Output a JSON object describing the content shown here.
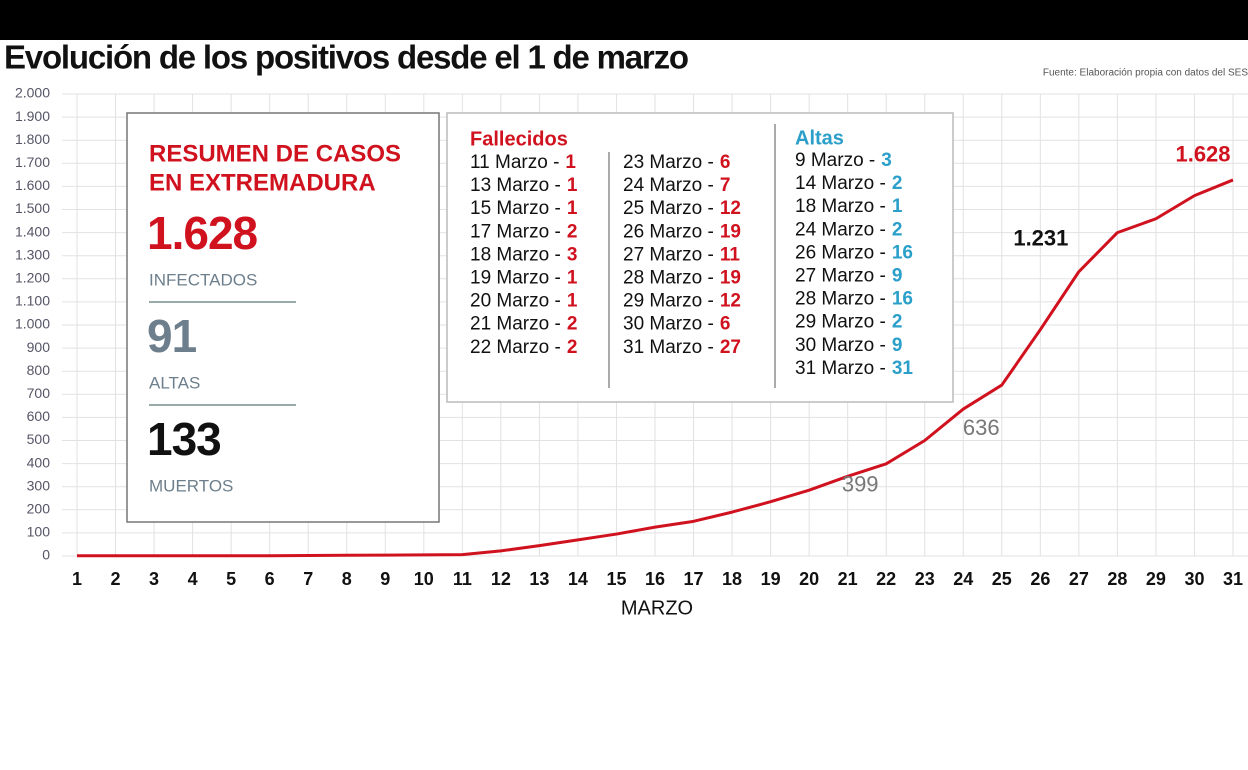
{
  "chart_data": {
    "type": "line",
    "title": "Evolución de los positivos desde el 1 de marzo",
    "source": "Fuente: Elaboración propia con datos del SES",
    "xlabel": "MARZO",
    "x": [
      1,
      2,
      3,
      4,
      5,
      6,
      7,
      8,
      9,
      10,
      11,
      12,
      13,
      14,
      15,
      16,
      17,
      18,
      19,
      20,
      21,
      22,
      23,
      24,
      25,
      26,
      27,
      28,
      29,
      30,
      31
    ],
    "series": [
      {
        "name": "Positivos",
        "color": "#d0121f",
        "values": [
          1,
          1,
          1,
          1,
          1,
          1,
          2,
          3,
          4,
          5,
          6,
          22,
          45,
          70,
          95,
          125,
          150,
          190,
          235,
          285,
          345,
          399,
          500,
          636,
          740,
          980,
          1231,
          1400,
          1460,
          1560,
          1628
        ],
        "value_labels": [
          null,
          null,
          null,
          null,
          null,
          null,
          null,
          null,
          null,
          null,
          null,
          null,
          null,
          null,
          null,
          null,
          null,
          null,
          null,
          null,
          null,
          "399",
          null,
          "636",
          null,
          null,
          "1.231",
          null,
          null,
          null,
          "1.628"
        ],
        "value_label_colors": [
          null,
          null,
          null,
          null,
          null,
          null,
          null,
          null,
          null,
          null,
          null,
          null,
          null,
          null,
          null,
          null,
          null,
          null,
          null,
          null,
          null,
          "#777",
          null,
          "#777",
          null,
          null,
          "#111",
          null,
          null,
          null,
          "#d0121f"
        ]
      }
    ],
    "xlim": [
      1,
      31
    ],
    "xticks": [
      1,
      2,
      3,
      4,
      5,
      6,
      7,
      8,
      9,
      10,
      11,
      12,
      13,
      14,
      15,
      16,
      17,
      18,
      19,
      20,
      21,
      22,
      23,
      24,
      25,
      26,
      27,
      28,
      29,
      30,
      31
    ],
    "ylim": [
      0,
      2000
    ],
    "yticks": [
      0,
      100,
      200,
      300,
      400,
      500,
      600,
      700,
      800,
      900,
      {
        "value": 1000,
        "label": "1.000"
      },
      {
        "value": 1100,
        "label": "1.100"
      },
      {
        "value": 1200,
        "label": "1.200"
      },
      {
        "value": 1300,
        "label": "1.300"
      },
      {
        "value": 1400,
        "label": "1.400"
      },
      {
        "value": 1500,
        "label": "1.500"
      },
      {
        "value": 1600,
        "label": "1.600"
      },
      {
        "value": 1700,
        "label": "1.700"
      },
      {
        "value": 1800,
        "label": "1.800"
      },
      {
        "value": 1900,
        "label": "1.900"
      },
      {
        "value": 2000,
        "label": "2.000"
      }
    ],
    "grid": true
  },
  "summary": {
    "title_lines": [
      "RESUMEN DE CASOS",
      "EN EXTREMADURA"
    ],
    "items": [
      {
        "value": "1.628",
        "label": "INFECTADOS",
        "color": "#d0121f"
      },
      {
        "value": "91",
        "label": "ALTAS",
        "color": "#6d7f8c"
      },
      {
        "value": "133",
        "label": "MUERTOS",
        "color": "#111"
      }
    ]
  },
  "deaths": {
    "title": "Fallecidos",
    "columns": [
      [
        {
          "label": "11 Marzo -",
          "count": 1
        },
        {
          "label": "13 Marzo -",
          "count": 1
        },
        {
          "label": "15 Marzo -",
          "count": 1
        },
        {
          "label": "17 Marzo -",
          "count": 2
        },
        {
          "label": "18 Marzo -",
          "count": 3
        },
        {
          "label": "19 Marzo -",
          "count": 1
        },
        {
          "label": "20 Marzo -",
          "count": 1
        },
        {
          "label": "21 Marzo -",
          "count": 2
        },
        {
          "label": "22 Marzo -",
          "count": 2
        }
      ],
      [
        {
          "label": "23 Marzo -",
          "count": 6
        },
        {
          "label": "24 Marzo -",
          "count": 7
        },
        {
          "label": "25 Marzo -",
          "count": 12
        },
        {
          "label": "26 Marzo -",
          "count": 19
        },
        {
          "label": "27 Marzo -",
          "count": 11
        },
        {
          "label": "28 Marzo -",
          "count": 19
        },
        {
          "label": "29 Marzo -",
          "count": 12
        },
        {
          "label": "30 Marzo -",
          "count": 6
        },
        {
          "label": "31 Marzo -",
          "count": 27
        }
      ]
    ]
  },
  "recoveries": {
    "title": "Altas",
    "entries": [
      {
        "label": "9 Marzo -",
        "count": 3
      },
      {
        "label": "14 Marzo -",
        "count": 2
      },
      {
        "label": "18 Marzo -",
        "count": 1
      },
      {
        "label": "24 Marzo -",
        "count": 2
      },
      {
        "label": "26 Marzo -",
        "count": 16
      },
      {
        "label": "27 Marzo -",
        "count": 9
      },
      {
        "label": "28 Marzo -",
        "count": 16
      },
      {
        "label": "29 Marzo -",
        "count": 2
      },
      {
        "label": "30 Marzo -",
        "count": 9
      },
      {
        "label": "31 Marzo -",
        "count": 31
      }
    ]
  }
}
